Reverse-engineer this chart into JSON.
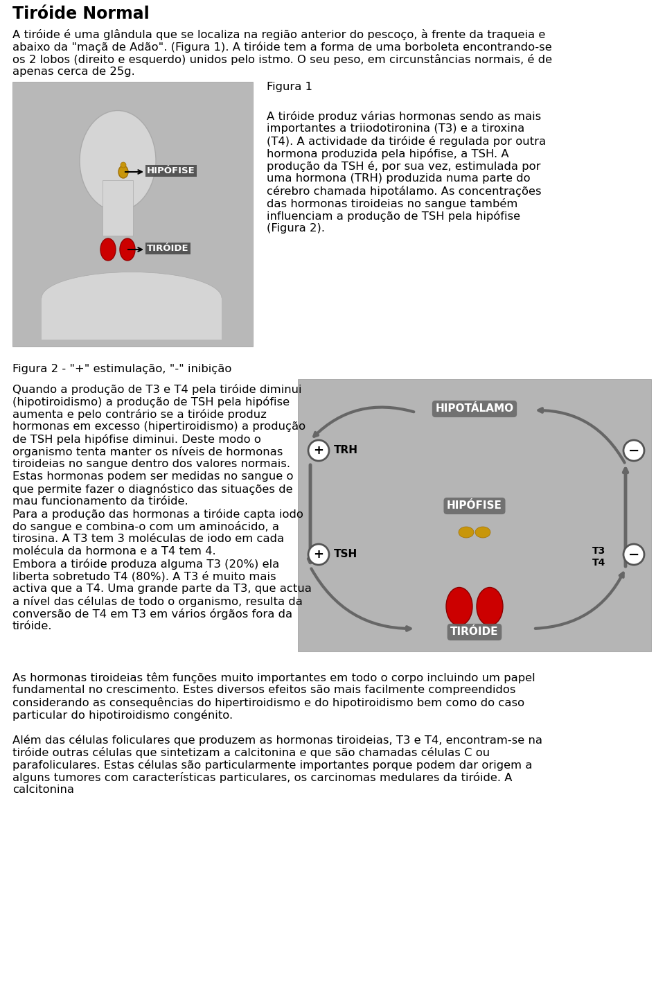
{
  "title": "Tiróide Normal",
  "para1": "A tiróide é uma glândula que se localiza na região anterior do pescoço, à frente da traqueia e abaixo da \"maçã de Adão\". (Figura 1). A tiróide tem a forma de uma borboleta encontrando-se os 2 lobos (direito e esquerdo) unidos pelo istmo. O seu peso, em circunstâncias normais, é de apenas cerca de 25g.",
  "figura1_label": "Figura 1",
  "para2": "A tiróide produz várias hormonas sendo as mais importantes a triiodotironina (T3) e a tiroxina (T4). A actividade da tiróide é regulada por outra hormona produzida pela hipófise, a TSH. A produção da TSH é, por sua vez, estimulada por uma hormona (TRH) produzida numa parte do cérebro chamada hipotálamo. As concentrações das hormonas tiroideias no sangue também influenciam a produção de TSH pela hipófise (Figura 2).",
  "figura2_label": "Figura 2 - \"+\" estimulação, \"-\" inibição",
  "para3": "Quando a produção de T3 e T4 pela tiróide diminui (hipotiroidismo) a produção de TSH pela hipófise aumenta e pelo contrário se a tiróide produz hormonas em excesso (hipertiroidismo) a produção de TSH pela hipófise diminui. Deste modo o organismo tenta manter os níveis de hormonas tiroideias no sangue dentro dos valores normais.\nEstas hormonas podem ser medidas no sangue o que permite fazer o diagnóstico das situações de mau funcionamento da tiróide.\nPara a produção das hormonas a tiróide capta iodo do sangue e combina-o com um aminoácido, a tirosina. A T3 tem 3 moléculas de iodo em cada molécula da hormona e a T4 tem 4.\nEmbora a tiróide produza alguma T3 (20%) ela liberta sobretudo T4 (80%). A T3 é muito mais activa que a T4. Uma grande parte da T3, que actua a nível das células de todo o organismo, resulta da conversão de T4 em T3 em vários órgãos fora da tiróide.",
  "para4": "As hormonas tiroideias têm funções muito importantes em todo o corpo incluindo um papel fundamental no crescimento. Estes diversos efeitos são mais facilmente compreendidos considerando as consequências do hipertiroidismo e do hipotiroidismo bem como do caso particular do hipotiroidismo congénito.",
  "para5": "Além das células foliculares que produzem as hormonas tiroideias, T3 e T4, encontram-se na tiróide outras células que sintetizam a calcitonina e que são chamadas células C ou parafoliculares. Estas células são particularmente importantes porque podem dar origem a alguns tumores com características particulares, os carcinomas medulares da tiróide. A calcitonina",
  "bg_color": "#ffffff",
  "text_color": "#000000",
  "title_color": "#000000"
}
